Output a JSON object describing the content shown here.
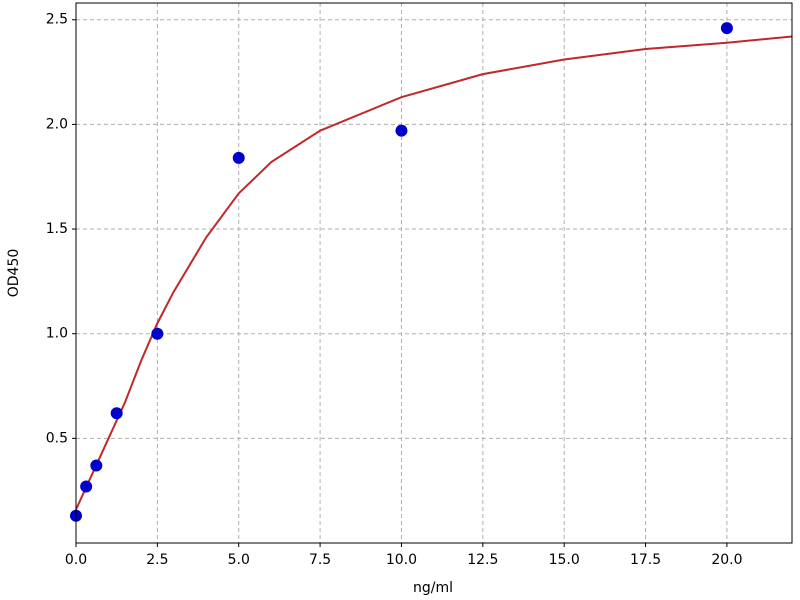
{
  "chart_data": {
    "type": "scatter",
    "xlabel": "ng/ml",
    "ylabel": "OD450",
    "xlim": [
      0,
      22
    ],
    "ylim": [
      0,
      2.58
    ],
    "xticks": [
      {
        "value": 0,
        "label": "0.0"
      },
      {
        "value": 2.5,
        "label": "2.5"
      },
      {
        "value": 5,
        "label": "5.0"
      },
      {
        "value": 7.5,
        "label": "7.5"
      },
      {
        "value": 10,
        "label": "10.0"
      },
      {
        "value": 12.5,
        "label": "12.5"
      },
      {
        "value": 15,
        "label": "15.0"
      },
      {
        "value": 17.5,
        "label": "17.5"
      },
      {
        "value": 20,
        "label": "20.0"
      }
    ],
    "yticks": [
      0.5,
      {
        "value": 1,
        "label": "1.0"
      },
      1.5,
      {
        "value": 2,
        "label": "2.0"
      },
      2.5
    ],
    "grid": true,
    "points": {
      "color": "#0000cc",
      "x": [
        0,
        0.3125,
        0.625,
        1.25,
        2.5,
        5,
        10,
        20
      ],
      "values": [
        0.13,
        0.27,
        0.37,
        0.62,
        1.0,
        1.84,
        1.97,
        2.46
      ]
    },
    "curve": {
      "color": "#c0282a",
      "x": [
        0,
        0.5,
        1,
        1.5,
        2,
        2.5,
        3,
        4,
        5,
        6,
        7.5,
        10,
        12.5,
        15,
        17.5,
        20,
        22
      ],
      "values": [
        0.16,
        0.33,
        0.5,
        0.67,
        0.87,
        1.05,
        1.2,
        1.46,
        1.67,
        1.82,
        1.97,
        2.13,
        2.24,
        2.31,
        2.36,
        2.39,
        2.42
      ]
    }
  }
}
